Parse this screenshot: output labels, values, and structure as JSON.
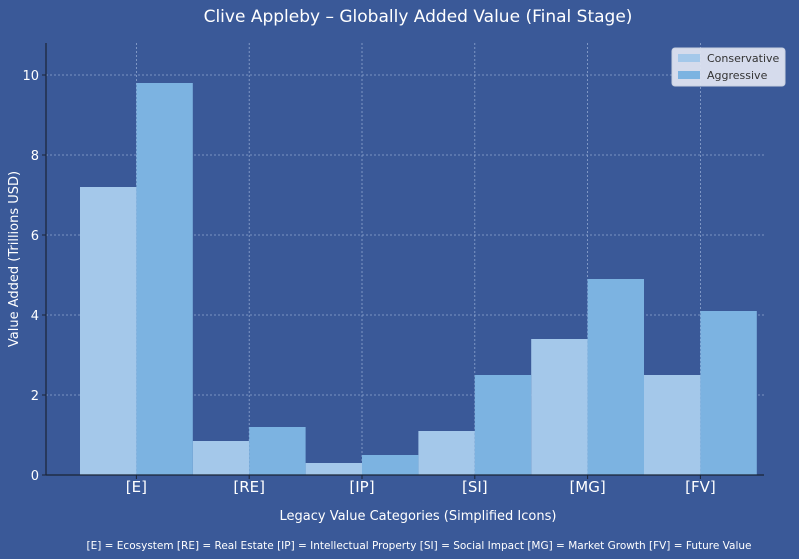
{
  "chart_data": {
    "type": "bar",
    "title": "Clive Appleby – Globally Added Value (Final Stage)",
    "xlabel": "Legacy Value Categories (Simplified Icons)",
    "ylabel": "Value Added (Trillions USD)",
    "categories": [
      "[E]",
      "[RE]",
      "[IP]",
      "[SI]",
      "[MG]",
      "[FV]"
    ],
    "series": [
      {
        "name": "Conservative",
        "values": [
          7.2,
          0.85,
          0.3,
          1.1,
          3.4,
          2.5
        ],
        "color": "#a4c8ea"
      },
      {
        "name": "Aggressive",
        "values": [
          9.8,
          1.2,
          0.5,
          2.5,
          4.9,
          4.1
        ],
        "color": "#7cb3e1"
      }
    ],
    "ylim": [
      0,
      10.8
    ],
    "yticks": [
      0,
      2,
      4,
      6,
      8,
      10
    ],
    "grid": true,
    "legend_position": "top-right",
    "footnote": "[E] = Ecosystem   [RE] = Real Estate   [IP] = Intellectual Property   [SI] = Social Impact   [MG] = Market Growth   [FV] = Future Value"
  },
  "colors": {
    "background": "#3a5998",
    "grid": "#8fa6cf",
    "axis": "#1b2436",
    "legend_bg": "#dde3f0",
    "legend_text": "#333333"
  }
}
